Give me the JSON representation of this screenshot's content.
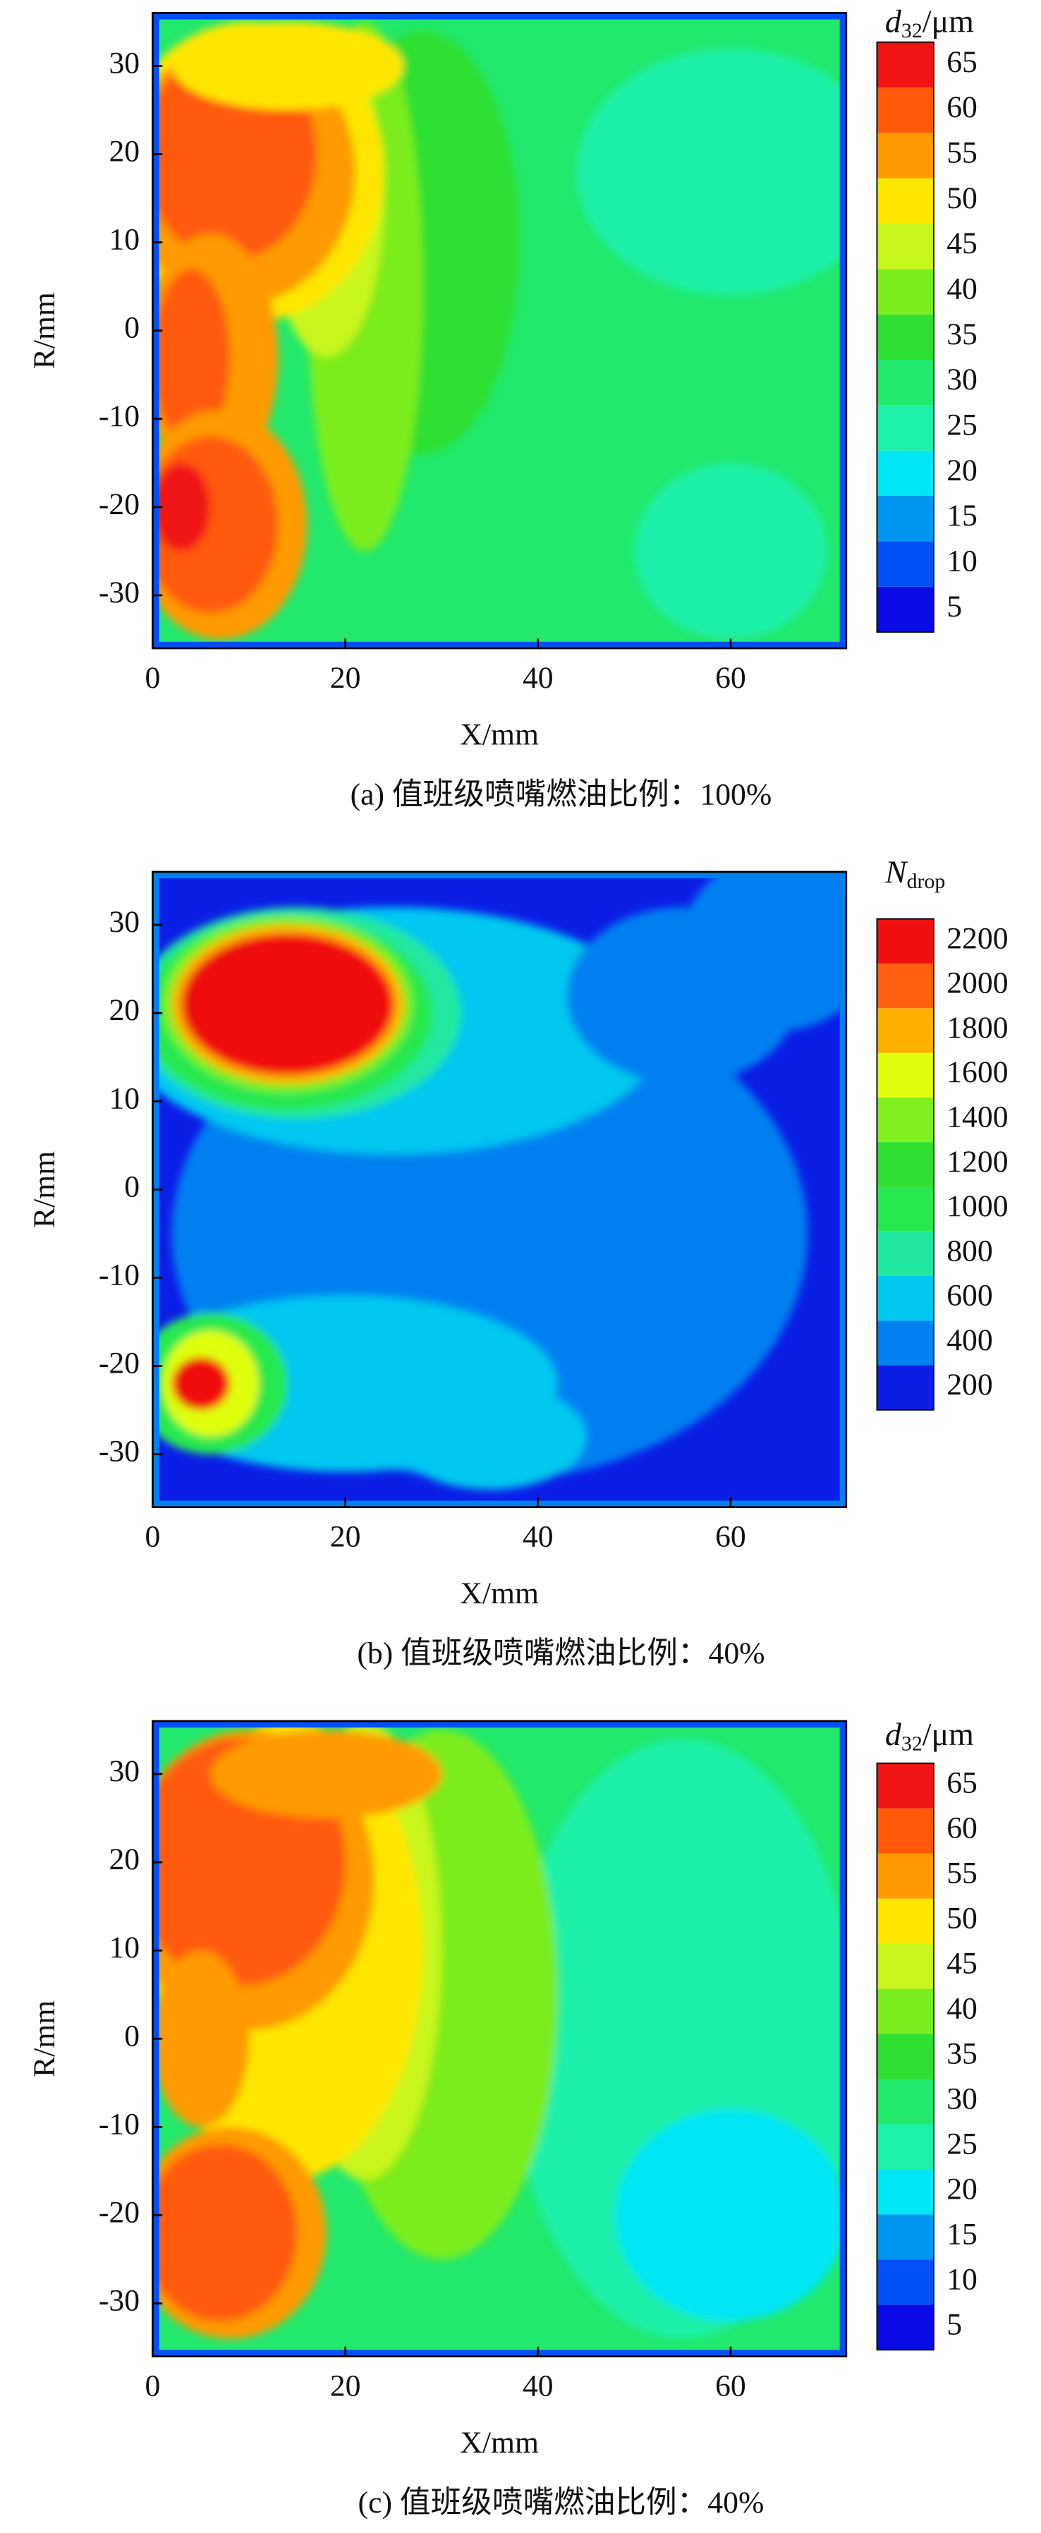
{
  "chart_data": [
    {
      "type": "contour",
      "caption": "(a) 值班级喷嘴燃油比例：100%",
      "x_label": "X/mm",
      "y_label": "R/mm",
      "xlim": [
        0,
        72
      ],
      "ylim": [
        -36,
        36
      ],
      "xticks": [
        0,
        20,
        40,
        60
      ],
      "yticks": [
        -30,
        -20,
        -10,
        0,
        10,
        20,
        30
      ],
      "colorbar": {
        "title": {
          "symbol": "d",
          "subscript": "32",
          "unit": "/μm"
        },
        "levels": [
          5,
          10,
          15,
          20,
          25,
          30,
          35,
          40,
          45,
          50,
          55,
          60,
          65
        ],
        "colors": [
          "#0a0ae6",
          "#0050f5",
          "#0096f0",
          "#00e6f5",
          "#1ef0a8",
          "#22e86c",
          "#2ee032",
          "#7ced1e",
          "#c8f51e",
          "#ffe600",
          "#ff9a00",
          "#ff5a0a",
          "#f01414"
        ]
      }
    },
    {
      "type": "contour",
      "caption": "(b) 值班级喷嘴燃油比例：40%",
      "x_label": "X/mm",
      "y_label": "R/mm",
      "xlim": [
        0,
        72
      ],
      "ylim": [
        -36,
        36
      ],
      "xticks": [
        0,
        20,
        40,
        60
      ],
      "yticks": [
        -30,
        -20,
        -10,
        0,
        10,
        20,
        30
      ],
      "colorbar": {
        "title": {
          "symbol": "N",
          "subscript": "drop"
        },
        "levels": [
          200,
          400,
          600,
          800,
          1000,
          1200,
          1400,
          1600,
          1800,
          2000,
          2200
        ],
        "colors": [
          "#0a1ee6",
          "#0080f0",
          "#00c8f0",
          "#20e8a0",
          "#28e850",
          "#30e030",
          "#80f020",
          "#e0ff10",
          "#ffb000",
          "#ff6010",
          "#f01010"
        ]
      }
    },
    {
      "type": "contour",
      "caption": "(c) 值班级喷嘴燃油比例：40%",
      "x_label": "X/mm",
      "y_label": "R/mm",
      "xlim": [
        0,
        72
      ],
      "ylim": [
        -36,
        36
      ],
      "xticks": [
        0,
        20,
        40,
        60
      ],
      "yticks": [
        -30,
        -20,
        -10,
        0,
        10,
        20,
        30
      ],
      "colorbar": {
        "title": {
          "symbol": "d",
          "subscript": "32",
          "unit": "/μm"
        },
        "levels": [
          5,
          10,
          15,
          20,
          25,
          30,
          35,
          40,
          45,
          50,
          55,
          60,
          65
        ],
        "colors": [
          "#0a0ae6",
          "#0050f5",
          "#0096f0",
          "#00e6f5",
          "#1ef0a8",
          "#22e86c",
          "#2ee032",
          "#7ced1e",
          "#c8f51e",
          "#ffe600",
          "#ff9a00",
          "#ff5a0a",
          "#f01414"
        ]
      }
    }
  ]
}
